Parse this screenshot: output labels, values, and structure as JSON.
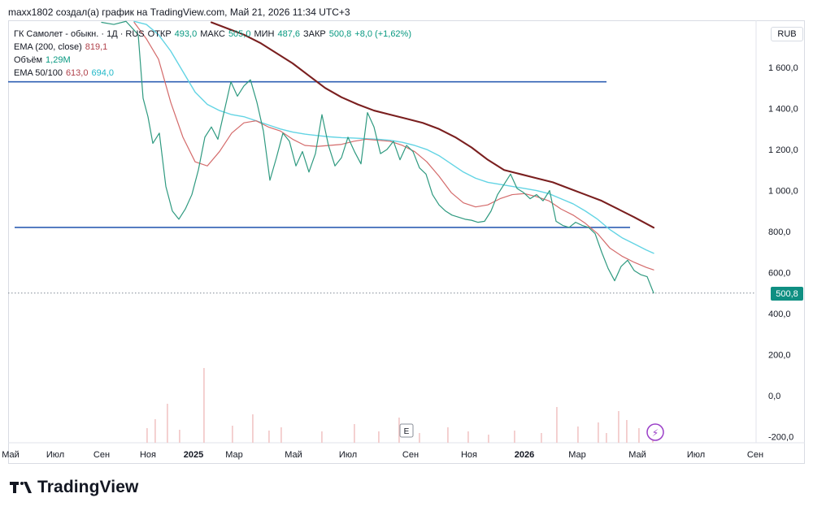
{
  "header": {
    "author_line": "maxx1802 создал(а) график на TradingView.com, Май 21, 2026 11:34 UTC+3"
  },
  "legend": {
    "title": "ГК Самолет - обыкн. · 1Д · RUS",
    "open_label": "ОТКР",
    "open_value": "493,0",
    "high_label": "МАКС",
    "high_value": "505,0",
    "low_label": "МИН",
    "low_value": "487,6",
    "close_label": "ЗАКР",
    "close_value": "500,8",
    "change_value": "+8,0 (+1,62%)",
    "ema200_label": "EMA (200, close)",
    "ema200_value": "819,1",
    "volume_label": "Объём",
    "volume_value": "1,29M",
    "ema50_100_label": "EMA 50/100",
    "ema50_value": "613,0",
    "ema100_value": "694,0"
  },
  "toolbar": {
    "currency": "RUB",
    "price_badge": "500,8",
    "events_button": "E",
    "lightning_button": "⚡"
  },
  "brand": {
    "logo_text": "TradingView"
  },
  "chart_data": {
    "type": "line",
    "x_ticks": [
      "Май",
      "Июл",
      "Сен",
      "Ноя",
      "2025",
      "Мар",
      "Май",
      "Июл",
      "Сен",
      "Ноя",
      "2026",
      "Мар",
      "Май",
      "Июл",
      "Сен"
    ],
    "x_tick_positions": [
      13,
      68,
      125,
      182,
      238,
      288,
      361,
      428,
      505,
      577,
      645,
      710,
      784,
      856,
      929
    ],
    "y_ticks": [
      "1 600,0",
      "1 400,0",
      "1 200,0",
      "1 000,0",
      "800,0",
      "600,0",
      "400,0",
      "200,0",
      "0,0",
      "-200,0"
    ],
    "y_tick_values": [
      1600,
      1400,
      1200,
      1000,
      800,
      600,
      400,
      200,
      0,
      -200
    ],
    "ylim": [
      -230,
      1830
    ],
    "price_series": [
      {
        "x": 125,
        "y": 1820
      },
      {
        "x": 140,
        "y": 1810
      },
      {
        "x": 155,
        "y": 1825
      },
      {
        "x": 170,
        "y": 1760
      },
      {
        "x": 176,
        "y": 1450
      },
      {
        "x": 182,
        "y": 1360
      },
      {
        "x": 188,
        "y": 1230
      },
      {
        "x": 196,
        "y": 1280
      },
      {
        "x": 204,
        "y": 1020
      },
      {
        "x": 212,
        "y": 900
      },
      {
        "x": 220,
        "y": 860
      },
      {
        "x": 228,
        "y": 910
      },
      {
        "x": 236,
        "y": 980
      },
      {
        "x": 244,
        "y": 1100
      },
      {
        "x": 252,
        "y": 1260
      },
      {
        "x": 260,
        "y": 1310
      },
      {
        "x": 268,
        "y": 1250
      },
      {
        "x": 276,
        "y": 1390
      },
      {
        "x": 284,
        "y": 1530
      },
      {
        "x": 292,
        "y": 1460
      },
      {
        "x": 300,
        "y": 1510
      },
      {
        "x": 308,
        "y": 1540
      },
      {
        "x": 316,
        "y": 1430
      },
      {
        "x": 324,
        "y": 1290
      },
      {
        "x": 332,
        "y": 1050
      },
      {
        "x": 340,
        "y": 1160
      },
      {
        "x": 348,
        "y": 1280
      },
      {
        "x": 356,
        "y": 1240
      },
      {
        "x": 364,
        "y": 1120
      },
      {
        "x": 372,
        "y": 1190
      },
      {
        "x": 380,
        "y": 1090
      },
      {
        "x": 388,
        "y": 1180
      },
      {
        "x": 396,
        "y": 1370
      },
      {
        "x": 404,
        "y": 1220
      },
      {
        "x": 412,
        "y": 1120
      },
      {
        "x": 420,
        "y": 1160
      },
      {
        "x": 428,
        "y": 1260
      },
      {
        "x": 436,
        "y": 1190
      },
      {
        "x": 444,
        "y": 1130
      },
      {
        "x": 452,
        "y": 1380
      },
      {
        "x": 460,
        "y": 1310
      },
      {
        "x": 468,
        "y": 1180
      },
      {
        "x": 476,
        "y": 1200
      },
      {
        "x": 484,
        "y": 1240
      },
      {
        "x": 492,
        "y": 1150
      },
      {
        "x": 500,
        "y": 1220
      },
      {
        "x": 508,
        "y": 1190
      },
      {
        "x": 516,
        "y": 1110
      },
      {
        "x": 524,
        "y": 1080
      },
      {
        "x": 532,
        "y": 980
      },
      {
        "x": 540,
        "y": 930
      },
      {
        "x": 548,
        "y": 900
      },
      {
        "x": 556,
        "y": 880
      },
      {
        "x": 564,
        "y": 870
      },
      {
        "x": 572,
        "y": 860
      },
      {
        "x": 580,
        "y": 855
      },
      {
        "x": 588,
        "y": 845
      },
      {
        "x": 596,
        "y": 850
      },
      {
        "x": 604,
        "y": 900
      },
      {
        "x": 612,
        "y": 980
      },
      {
        "x": 620,
        "y": 1030
      },
      {
        "x": 628,
        "y": 1080
      },
      {
        "x": 636,
        "y": 1010
      },
      {
        "x": 644,
        "y": 990
      },
      {
        "x": 652,
        "y": 960
      },
      {
        "x": 660,
        "y": 980
      },
      {
        "x": 668,
        "y": 950
      },
      {
        "x": 676,
        "y": 1000
      },
      {
        "x": 684,
        "y": 850
      },
      {
        "x": 692,
        "y": 830
      },
      {
        "x": 700,
        "y": 820
      },
      {
        "x": 708,
        "y": 845
      },
      {
        "x": 716,
        "y": 830
      },
      {
        "x": 724,
        "y": 820
      },
      {
        "x": 732,
        "y": 790
      },
      {
        "x": 740,
        "y": 700
      },
      {
        "x": 748,
        "y": 620
      },
      {
        "x": 756,
        "y": 560
      },
      {
        "x": 764,
        "y": 630
      },
      {
        "x": 772,
        "y": 660
      },
      {
        "x": 780,
        "y": 610
      },
      {
        "x": 788,
        "y": 590
      },
      {
        "x": 796,
        "y": 580
      },
      {
        "x": 804,
        "y": 500
      }
    ],
    "ema50_series": [
      {
        "x": 165,
        "y": 1820
      },
      {
        "x": 180,
        "y": 1740
      },
      {
        "x": 195,
        "y": 1640
      },
      {
        "x": 210,
        "y": 1430
      },
      {
        "x": 225,
        "y": 1260
      },
      {
        "x": 240,
        "y": 1140
      },
      {
        "x": 255,
        "y": 1120
      },
      {
        "x": 270,
        "y": 1190
      },
      {
        "x": 285,
        "y": 1280
      },
      {
        "x": 300,
        "y": 1330
      },
      {
        "x": 315,
        "y": 1340
      },
      {
        "x": 330,
        "y": 1310
      },
      {
        "x": 345,
        "y": 1290
      },
      {
        "x": 360,
        "y": 1250
      },
      {
        "x": 375,
        "y": 1220
      },
      {
        "x": 390,
        "y": 1215
      },
      {
        "x": 405,
        "y": 1220
      },
      {
        "x": 420,
        "y": 1225
      },
      {
        "x": 435,
        "y": 1240
      },
      {
        "x": 450,
        "y": 1250
      },
      {
        "x": 465,
        "y": 1245
      },
      {
        "x": 480,
        "y": 1240
      },
      {
        "x": 495,
        "y": 1220
      },
      {
        "x": 510,
        "y": 1190
      },
      {
        "x": 525,
        "y": 1140
      },
      {
        "x": 540,
        "y": 1070
      },
      {
        "x": 555,
        "y": 990
      },
      {
        "x": 570,
        "y": 940
      },
      {
        "x": 585,
        "y": 920
      },
      {
        "x": 600,
        "y": 930
      },
      {
        "x": 615,
        "y": 960
      },
      {
        "x": 630,
        "y": 980
      },
      {
        "x": 645,
        "y": 985
      },
      {
        "x": 660,
        "y": 970
      },
      {
        "x": 675,
        "y": 950
      },
      {
        "x": 690,
        "y": 910
      },
      {
        "x": 705,
        "y": 880
      },
      {
        "x": 720,
        "y": 840
      },
      {
        "x": 735,
        "y": 790
      },
      {
        "x": 750,
        "y": 720
      },
      {
        "x": 765,
        "y": 680
      },
      {
        "x": 780,
        "y": 650
      },
      {
        "x": 795,
        "y": 625
      },
      {
        "x": 804,
        "y": 613
      }
    ],
    "ema100_series": [
      {
        "x": 165,
        "y": 1825
      },
      {
        "x": 180,
        "y": 1810
      },
      {
        "x": 195,
        "y": 1760
      },
      {
        "x": 210,
        "y": 1680
      },
      {
        "x": 225,
        "y": 1580
      },
      {
        "x": 240,
        "y": 1480
      },
      {
        "x": 255,
        "y": 1420
      },
      {
        "x": 270,
        "y": 1390
      },
      {
        "x": 285,
        "y": 1370
      },
      {
        "x": 300,
        "y": 1360
      },
      {
        "x": 315,
        "y": 1340
      },
      {
        "x": 330,
        "y": 1320
      },
      {
        "x": 345,
        "y": 1300
      },
      {
        "x": 360,
        "y": 1285
      },
      {
        "x": 375,
        "y": 1275
      },
      {
        "x": 390,
        "y": 1268
      },
      {
        "x": 405,
        "y": 1262
      },
      {
        "x": 420,
        "y": 1258
      },
      {
        "x": 435,
        "y": 1256
      },
      {
        "x": 450,
        "y": 1253
      },
      {
        "x": 465,
        "y": 1250
      },
      {
        "x": 480,
        "y": 1245
      },
      {
        "x": 495,
        "y": 1235
      },
      {
        "x": 510,
        "y": 1220
      },
      {
        "x": 525,
        "y": 1200
      },
      {
        "x": 540,
        "y": 1170
      },
      {
        "x": 555,
        "y": 1130
      },
      {
        "x": 570,
        "y": 1090
      },
      {
        "x": 585,
        "y": 1060
      },
      {
        "x": 600,
        "y": 1040
      },
      {
        "x": 615,
        "y": 1030
      },
      {
        "x": 630,
        "y": 1020
      },
      {
        "x": 645,
        "y": 1010
      },
      {
        "x": 660,
        "y": 1000
      },
      {
        "x": 675,
        "y": 985
      },
      {
        "x": 690,
        "y": 960
      },
      {
        "x": 705,
        "y": 935
      },
      {
        "x": 720,
        "y": 900
      },
      {
        "x": 735,
        "y": 860
      },
      {
        "x": 750,
        "y": 810
      },
      {
        "x": 765,
        "y": 770
      },
      {
        "x": 780,
        "y": 740
      },
      {
        "x": 795,
        "y": 710
      },
      {
        "x": 804,
        "y": 694
      }
    ],
    "ema200_series": [
      {
        "x": 260,
        "y": 1820
      },
      {
        "x": 280,
        "y": 1790
      },
      {
        "x": 300,
        "y": 1760
      },
      {
        "x": 320,
        "y": 1720
      },
      {
        "x": 340,
        "y": 1670
      },
      {
        "x": 360,
        "y": 1620
      },
      {
        "x": 380,
        "y": 1560
      },
      {
        "x": 400,
        "y": 1500
      },
      {
        "x": 420,
        "y": 1455
      },
      {
        "x": 440,
        "y": 1420
      },
      {
        "x": 460,
        "y": 1390
      },
      {
        "x": 480,
        "y": 1370
      },
      {
        "x": 500,
        "y": 1350
      },
      {
        "x": 520,
        "y": 1330
      },
      {
        "x": 540,
        "y": 1300
      },
      {
        "x": 560,
        "y": 1260
      },
      {
        "x": 580,
        "y": 1210
      },
      {
        "x": 600,
        "y": 1150
      },
      {
        "x": 620,
        "y": 1100
      },
      {
        "x": 640,
        "y": 1080
      },
      {
        "x": 660,
        "y": 1060
      },
      {
        "x": 680,
        "y": 1040
      },
      {
        "x": 700,
        "y": 1010
      },
      {
        "x": 720,
        "y": 980
      },
      {
        "x": 740,
        "y": 950
      },
      {
        "x": 760,
        "y": 910
      },
      {
        "x": 780,
        "y": 870
      },
      {
        "x": 804,
        "y": 819
      }
    ],
    "volume_bars": [
      {
        "x": 180,
        "height": 18
      },
      {
        "x": 190,
        "height": 29
      },
      {
        "x": 205,
        "height": 48
      },
      {
        "x": 220,
        "height": 16
      },
      {
        "x": 250,
        "height": 92
      },
      {
        "x": 285,
        "height": 21
      },
      {
        "x": 310,
        "height": 35
      },
      {
        "x": 330,
        "height": 15
      },
      {
        "x": 345,
        "height": 19
      },
      {
        "x": 395,
        "height": 14
      },
      {
        "x": 435,
        "height": 23
      },
      {
        "x": 465,
        "height": 14
      },
      {
        "x": 490,
        "height": 31
      },
      {
        "x": 515,
        "height": 12
      },
      {
        "x": 550,
        "height": 19
      },
      {
        "x": 575,
        "height": 14
      },
      {
        "x": 600,
        "height": 10
      },
      {
        "x": 632,
        "height": 15
      },
      {
        "x": 665,
        "height": 12
      },
      {
        "x": 684,
        "height": 44
      },
      {
        "x": 710,
        "height": 20
      },
      {
        "x": 735,
        "height": 25
      },
      {
        "x": 745,
        "height": 12
      },
      {
        "x": 760,
        "height": 39
      },
      {
        "x": 770,
        "height": 28
      },
      {
        "x": 785,
        "height": 18
      },
      {
        "x": 802,
        "height": 14
      }
    ],
    "support_lines": [
      {
        "x1": 10,
        "x2": 746,
        "y": 1530
      },
      {
        "x1": 18,
        "x2": 775,
        "y": 820
      }
    ],
    "current_price_line_y": 500
  }
}
